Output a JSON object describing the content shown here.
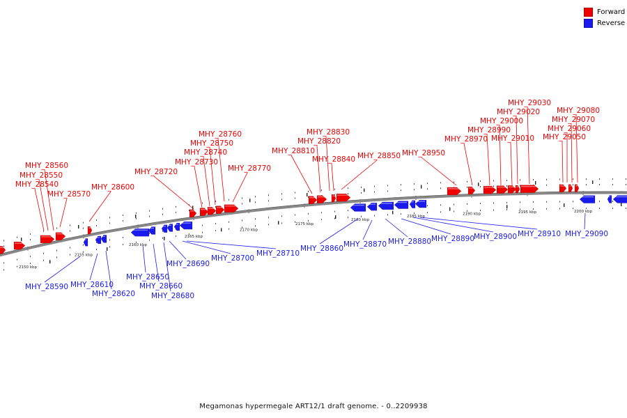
{
  "legend": {
    "forward_label": "Forward",
    "reverse_label": "Reverse",
    "forward_color": "#ee0000",
    "reverse_color": "#1a1aee"
  },
  "caption": "Megamonas hypermegale ART12/1 draft genome. - 0..2209938",
  "scale": {
    "unit": "kbp",
    "ticks": [
      2150,
      2155,
      2160,
      2165,
      2170,
      2175,
      2180,
      2185,
      2190,
      2195,
      2200
    ]
  },
  "genes": {
    "forward": [
      "MHY_28540",
      "MHY_28550",
      "MHY_28560",
      "MHY_28570",
      "MHY_28600",
      "MHY_28720",
      "MHY_28730",
      "MHY_28740",
      "MHY_28750",
      "MHY_28760",
      "MHY_28770",
      "MHY_28810",
      "MHY_28820",
      "MHY_28830",
      "MHY_28840",
      "MHY_28850",
      "MHY_28950",
      "MHY_28970",
      "MHY_28990",
      "MHY_29000",
      "MHY_29010",
      "MHY_29020",
      "MHY_29030",
      "MHY_29050",
      "MHY_29060",
      "MHY_29070",
      "MHY_29080"
    ],
    "reverse": [
      "MHY_28590",
      "MHY_28610",
      "MHY_28620",
      "MHY_28650",
      "MHY_28660",
      "MHY_28680",
      "MHY_28690",
      "MHY_28700",
      "MHY_28710",
      "MHY_28860",
      "MHY_28870",
      "MHY_28880",
      "MHY_28890",
      "MHY_28900",
      "MHY_28910",
      "MHY_29090"
    ]
  }
}
